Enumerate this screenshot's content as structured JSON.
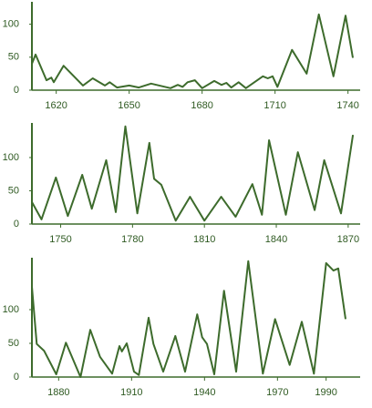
{
  "chart_data": [
    {
      "type": "line",
      "color": "#3d6b2c",
      "x": [
        1610,
        1611.5,
        1616,
        1618,
        1619,
        1623,
        1631,
        1635,
        1640,
        1642,
        1645,
        1650,
        1654,
        1659,
        1667,
        1670,
        1672,
        1674,
        1677,
        1680,
        1685,
        1688,
        1690,
        1692,
        1695,
        1698,
        1705,
        1707,
        1709,
        1711,
        1717,
        1723,
        1728,
        1734,
        1739,
        1742
      ],
      "values": [
        40,
        54,
        15,
        19,
        12,
        37,
        7,
        18,
        7,
        12,
        4,
        7,
        4,
        10,
        3,
        8,
        5,
        12,
        15,
        3,
        14,
        8,
        11,
        4,
        12,
        3,
        21,
        18,
        21,
        5,
        61,
        25,
        115,
        21,
        113,
        49
      ],
      "xlim": [
        1610,
        1745
      ],
      "ylim": [
        0,
        134
      ],
      "xticks": [
        1620,
        1650,
        1680,
        1710,
        1740
      ],
      "yticks": [
        0,
        50,
        100
      ]
    },
    {
      "type": "line",
      "color": "#3d6b2c",
      "x": [
        1738,
        1742,
        1748,
        1753,
        1759,
        1763,
        1769,
        1773,
        1777,
        1782,
        1787,
        1789,
        1792,
        1798,
        1804,
        1810,
        1817,
        1823,
        1830,
        1834,
        1837,
        1844,
        1849,
        1856,
        1860,
        1867,
        1872
      ],
      "values": [
        33,
        7,
        70,
        12,
        74,
        23,
        96,
        18,
        147,
        16,
        122,
        68,
        59,
        5,
        41,
        5,
        41,
        11,
        60,
        14,
        126,
        14,
        108,
        21,
        96,
        16,
        134
      ],
      "xlim": [
        1738,
        1875
      ],
      "ylim": [
        0,
        152
      ],
      "xticks": [
        1750,
        1780,
        1810,
        1840,
        1870
      ],
      "yticks": [
        0,
        50,
        100
      ]
    },
    {
      "type": "line",
      "color": "#3d6b2c",
      "x": [
        1869,
        1871,
        1874,
        1879,
        1883,
        1889,
        1893,
        1897,
        1902,
        1905,
        1906,
        1908,
        1911,
        1913,
        1917,
        1919,
        1923,
        1928,
        1932,
        1937,
        1939,
        1941,
        1944,
        1948,
        1953,
        1958,
        1964,
        1969,
        1975,
        1980,
        1985,
        1990,
        1993,
        1995,
        1998
      ],
      "values": [
        134,
        49,
        39,
        4,
        51,
        0,
        70,
        30,
        5,
        46,
        38,
        50,
        8,
        3,
        88,
        49,
        8,
        61,
        8,
        93,
        59,
        49,
        4,
        128,
        8,
        172,
        5,
        86,
        18,
        82,
        5,
        169,
        158,
        161,
        86
      ],
      "xlim": [
        1869,
        2004
      ],
      "ylim": [
        0,
        177
      ],
      "xticks": [
        1880,
        1910,
        1940,
        1970,
        1990
      ],
      "yticks": [
        0,
        50,
        100
      ]
    }
  ]
}
